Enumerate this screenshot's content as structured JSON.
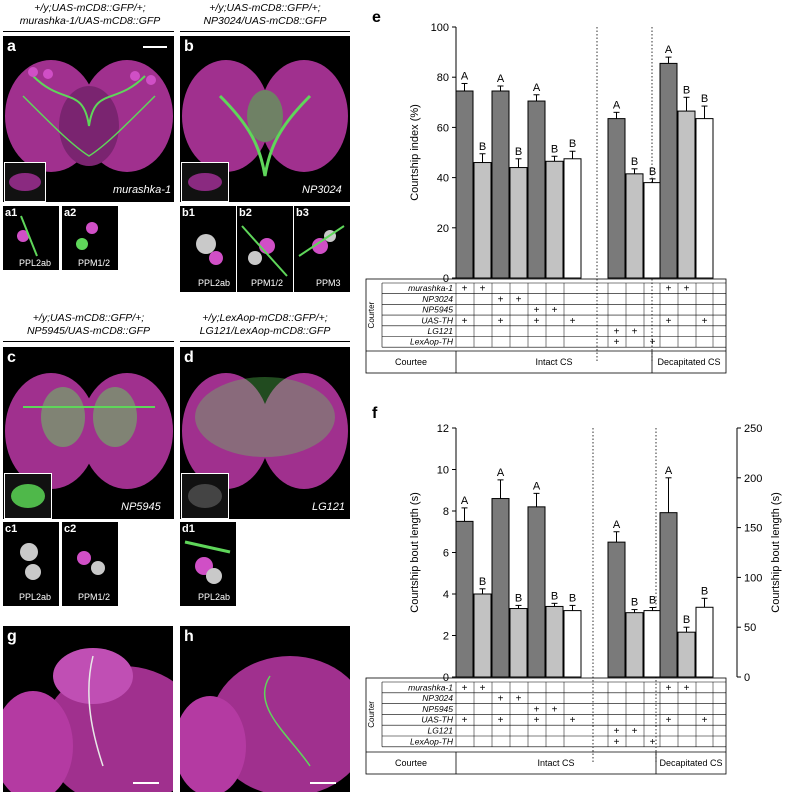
{
  "panels": {
    "a": {
      "label": "a",
      "header_line1": "+/y;UAS-mCD8::GFP/+;",
      "header_line2": "murashka-1/UAS-mCD8::GFP",
      "genotype": "murashka-1",
      "subs": [
        {
          "label": "a1",
          "region": "PPL2ab"
        },
        {
          "label": "a2",
          "region": "PPM1/2"
        }
      ]
    },
    "b": {
      "label": "b",
      "header_line1": "+/y;UAS-mCD8::GFP/+;",
      "header_line2": "NP3024/UAS-mCD8::GFP",
      "genotype": "NP3024",
      "subs": [
        {
          "label": "b1",
          "region": "PPL2ab"
        },
        {
          "label": "b2",
          "region": "PPM1/2"
        },
        {
          "label": "b3",
          "region": "PPM3"
        }
      ]
    },
    "c": {
      "label": "c",
      "header_line1": "+/y;UAS-mCD8::GFP/+;",
      "header_line2": "NP5945/UAS-mCD8::GFP",
      "genotype": "NP5945",
      "subs": [
        {
          "label": "c1",
          "region": "PPL2ab"
        },
        {
          "label": "c2",
          "region": "PPM1/2"
        }
      ]
    },
    "d": {
      "label": "d",
      "header_line1": "+/y;LexAop-mCD8::GFP/+;",
      "header_line2": "LG121/LexAop-mCD8::GFP",
      "genotype": "LG121",
      "subs": [
        {
          "label": "d1",
          "region": "PPL2ab"
        }
      ]
    },
    "g": {
      "label": "g"
    },
    "h": {
      "label": "h"
    }
  },
  "chart_data": [
    {
      "panel": "e",
      "type": "bar",
      "ylabel": "Courtship index (%)",
      "ylim": [
        0,
        100
      ],
      "yticks": [
        0,
        20,
        40,
        60,
        80,
        100
      ],
      "groups": [
        "Intact CS",
        "Intact CS",
        "Decapitated CS"
      ],
      "bars": [
        {
          "value": 74.5,
          "err": 3,
          "letter": "A",
          "fill": "#7a7a7a"
        },
        {
          "value": 46,
          "err": 3.5,
          "letter": "B",
          "fill": "#c2c2c2"
        },
        {
          "value": 74.5,
          "err": 2,
          "letter": "A",
          "fill": "#7a7a7a"
        },
        {
          "value": 44,
          "err": 3.5,
          "letter": "B",
          "fill": "#c2c2c2"
        },
        {
          "value": 70.5,
          "err": 2.5,
          "letter": "A",
          "fill": "#7a7a7a"
        },
        {
          "value": 46.5,
          "err": 2,
          "letter": "B",
          "fill": "#c2c2c2"
        },
        {
          "value": 47.5,
          "err": 3,
          "letter": "B",
          "fill": "#ffffff"
        },
        {
          "value": 63.5,
          "err": 2.5,
          "letter": "A",
          "fill": "#7a7a7a"
        },
        {
          "value": 41.5,
          "err": 2,
          "letter": "B",
          "fill": "#c2c2c2"
        },
        {
          "value": 38,
          "err": 1.5,
          "letter": "B",
          "fill": "#ffffff"
        },
        {
          "value": 85.5,
          "err": 2.5,
          "letter": "A",
          "fill": "#7a7a7a"
        },
        {
          "value": 66.5,
          "err": 5.5,
          "letter": "B",
          "fill": "#c2c2c2"
        },
        {
          "value": 63.5,
          "err": 5,
          "letter": "B",
          "fill": "#ffffff"
        }
      ],
      "table": {
        "courter_label": "Courter",
        "courtee_label": "Courtee",
        "rows": [
          "murashka-1",
          "NP3024",
          "NP5945",
          "UAS-TH",
          "LG121",
          "LexAop-TH"
        ],
        "plus": [
          [
            0,
            0
          ],
          [
            0,
            1
          ],
          [
            1,
            2
          ],
          [
            1,
            3
          ],
          [
            2,
            4
          ],
          [
            2,
            5
          ],
          [
            3,
            0
          ],
          [
            3,
            2
          ],
          [
            3,
            4
          ],
          [
            3,
            6
          ],
          [
            4,
            7
          ],
          [
            4,
            8
          ],
          [
            5,
            7
          ],
          [
            5,
            9
          ],
          [
            0,
            10
          ],
          [
            0,
            11
          ],
          [
            3,
            10
          ],
          [
            3,
            12
          ]
        ],
        "plus_symbol": "+",
        "groups": [
          "Intact CS",
          "Decapitated CS"
        ]
      }
    },
    {
      "panel": "f",
      "type": "bar",
      "ylabel": "Courtship bout length (s)",
      "ylim": [
        0,
        12
      ],
      "yticks": [
        0,
        2,
        4,
        6,
        8,
        10,
        12
      ],
      "ylabel_right": "Courtship bout length (s)",
      "ylim_right": [
        0,
        250
      ],
      "yticks_right": [
        0,
        50,
        100,
        150,
        200,
        250
      ],
      "bars": [
        {
          "value": 7.5,
          "err": 0.65,
          "letter": "A",
          "fill": "#7a7a7a"
        },
        {
          "value": 4.0,
          "err": 0.25,
          "letter": "B",
          "fill": "#c2c2c2"
        },
        {
          "value": 8.6,
          "err": 0.9,
          "letter": "A",
          "fill": "#7a7a7a"
        },
        {
          "value": 3.3,
          "err": 0.15,
          "letter": "B",
          "fill": "#c2c2c2"
        },
        {
          "value": 8.2,
          "err": 0.65,
          "letter": "A",
          "fill": "#7a7a7a"
        },
        {
          "value": 3.4,
          "err": 0.15,
          "letter": "B",
          "fill": "#c2c2c2"
        },
        {
          "value": 3.2,
          "err": 0.25,
          "letter": "B",
          "fill": "#ffffff"
        },
        {
          "value": 6.5,
          "err": 0.5,
          "letter": "A",
          "fill": "#7a7a7a"
        },
        {
          "value": 3.1,
          "err": 0.15,
          "letter": "B",
          "fill": "#c2c2c2"
        },
        {
          "value": 3.2,
          "err": 0.15,
          "letter": "B",
          "fill": "#ffffff"
        },
        {
          "value": 165,
          "err": 35,
          "letter": "A",
          "fill": "#7a7a7a",
          "axis": "right"
        },
        {
          "value": 45,
          "err": 5,
          "letter": "B",
          "fill": "#c2c2c2",
          "axis": "right"
        },
        {
          "value": 70,
          "err": 9,
          "letter": "B",
          "fill": "#ffffff",
          "axis": "right"
        }
      ],
      "table": {
        "courter_label": "Courter",
        "courtee_label": "Courtee",
        "rows": [
          "murashka-1",
          "NP3024",
          "NP5945",
          "UAS-TH",
          "LG121",
          "LexAop-TH"
        ],
        "plus": [
          [
            0,
            0
          ],
          [
            0,
            1
          ],
          [
            1,
            2
          ],
          [
            1,
            3
          ],
          [
            2,
            4
          ],
          [
            2,
            5
          ],
          [
            3,
            0
          ],
          [
            3,
            2
          ],
          [
            3,
            4
          ],
          [
            3,
            6
          ],
          [
            4,
            7
          ],
          [
            4,
            8
          ],
          [
            5,
            7
          ],
          [
            5,
            9
          ],
          [
            0,
            10
          ],
          [
            0,
            11
          ],
          [
            3,
            10
          ],
          [
            3,
            12
          ]
        ],
        "plus_symbol": "+",
        "groups": [
          "Intact CS",
          "Decapitated CS"
        ]
      }
    }
  ],
  "panel_letters": {
    "e": "e",
    "f": "f"
  }
}
